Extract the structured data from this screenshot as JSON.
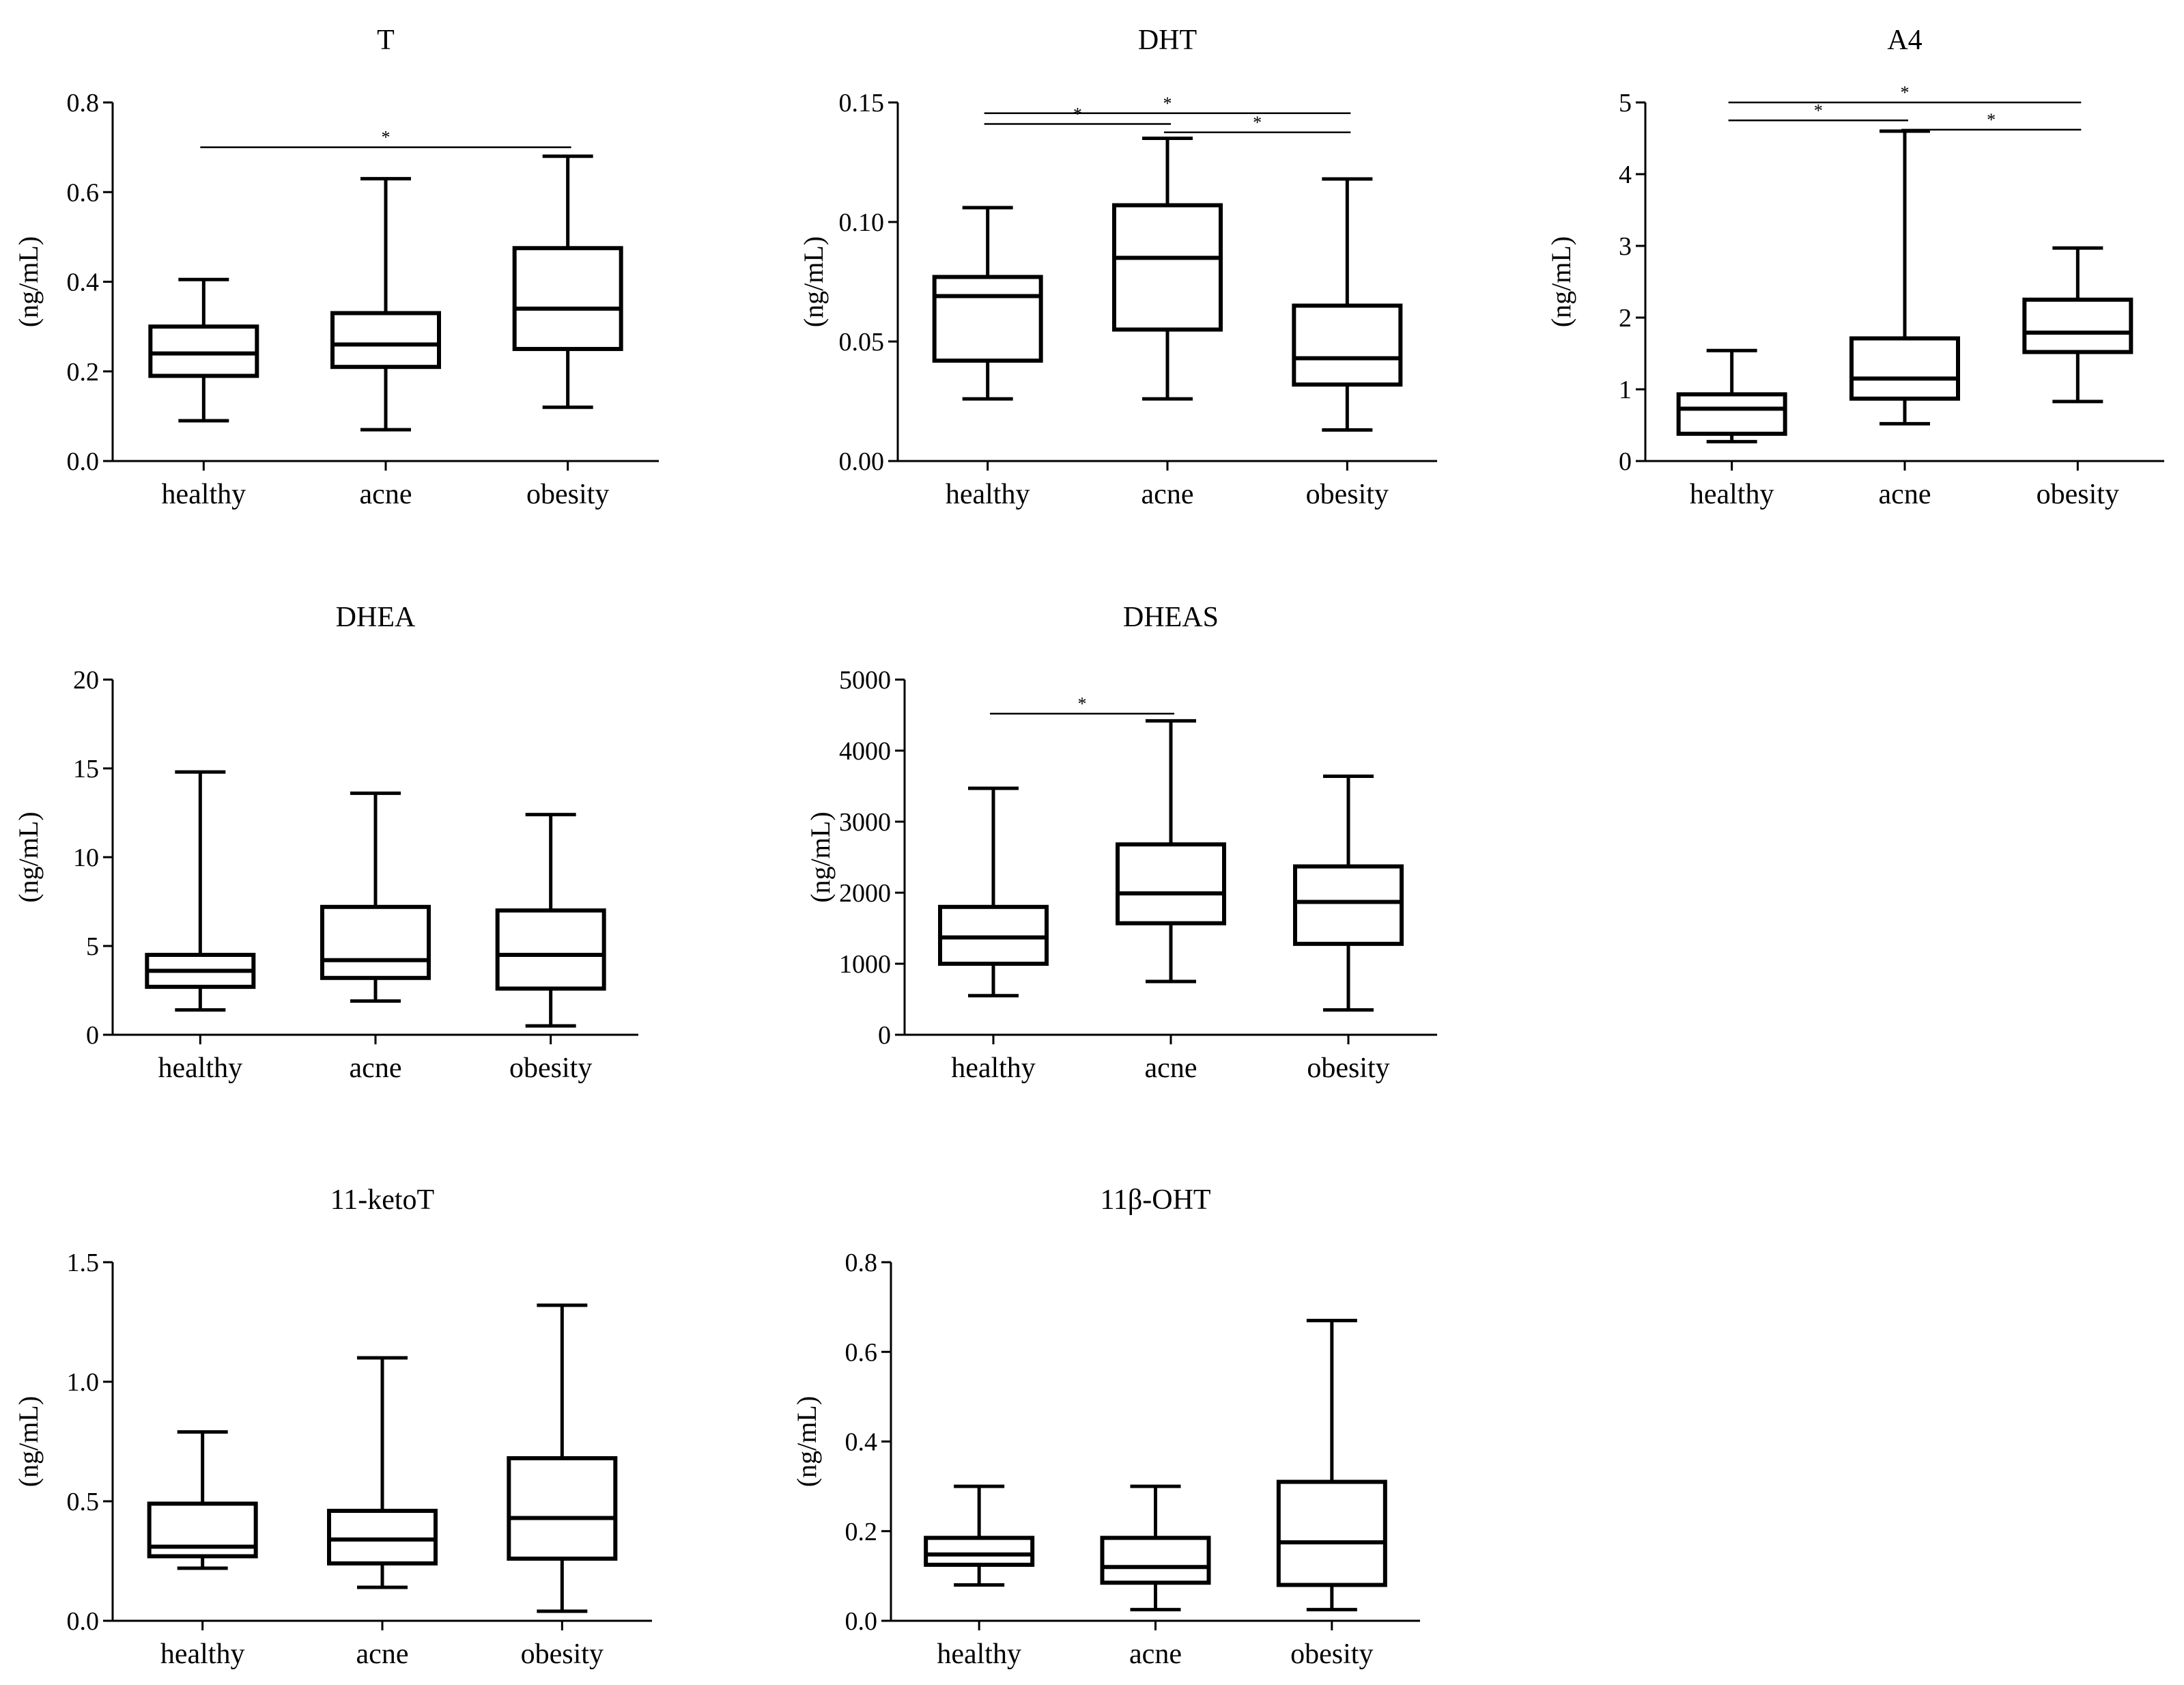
{
  "chart_data": [
    {
      "type": "box",
      "title": "T",
      "ylabel": "(ng/mL)",
      "ylim": [
        0,
        0.8
      ],
      "yticks": [
        "0.0",
        "0.2",
        "0.4",
        "0.6",
        "0.8"
      ],
      "categories": [
        "healthy",
        "acne",
        "obesity"
      ],
      "boxes": [
        {
          "min": 0.09,
          "q1": 0.19,
          "median": 0.24,
          "q3": 0.3,
          "max": 0.405
        },
        {
          "min": 0.07,
          "q1": 0.21,
          "median": 0.26,
          "q3": 0.33,
          "max": 0.63
        },
        {
          "min": 0.12,
          "q1": 0.25,
          "median": 0.34,
          "q3": 0.475,
          "max": 0.68
        }
      ],
      "significance": [
        {
          "from": 0,
          "to": 2,
          "y": 0.7,
          "label": "*"
        }
      ]
    },
    {
      "type": "box",
      "title": "DHT",
      "ylabel": "(ng/mL)",
      "ylim": [
        0,
        0.15
      ],
      "yticks": [
        "0.00",
        "0.05",
        "0.10",
        "0.15"
      ],
      "categories": [
        "healthy",
        "acne",
        "obesity"
      ],
      "boxes": [
        {
          "min": 0.026,
          "q1": 0.042,
          "median": 0.069,
          "q3": 0.077,
          "max": 0.106
        },
        {
          "min": 0.026,
          "q1": 0.055,
          "median": 0.085,
          "q3": 0.107,
          "max": 0.135
        },
        {
          "min": 0.013,
          "q1": 0.032,
          "median": 0.043,
          "q3": 0.065,
          "max": 0.118
        }
      ],
      "significance": [
        {
          "from": 0,
          "to": 2,
          "y": 0.1455,
          "label": "*"
        },
        {
          "from": 0,
          "to": 1,
          "y": 0.141,
          "label": "*"
        },
        {
          "from": 1,
          "to": 2,
          "y": 0.1375,
          "label": "*"
        }
      ]
    },
    {
      "type": "box",
      "title": "A4",
      "ylabel": "(ng/mL)",
      "ylim": [
        0,
        5
      ],
      "yticks": [
        "0",
        "1",
        "2",
        "3",
        "4",
        "5"
      ],
      "categories": [
        "healthy",
        "acne",
        "obesity"
      ],
      "boxes": [
        {
          "min": 0.27,
          "q1": 0.38,
          "median": 0.73,
          "q3": 0.93,
          "max": 1.54
        },
        {
          "min": 0.52,
          "q1": 0.87,
          "median": 1.15,
          "q3": 1.71,
          "max": 4.6
        },
        {
          "min": 0.83,
          "q1": 1.52,
          "median": 1.79,
          "q3": 2.25,
          "max": 2.97
        }
      ],
      "significance": [
        {
          "from": 0,
          "to": 2,
          "y": 5.0,
          "label": "*"
        },
        {
          "from": 0,
          "to": 1,
          "y": 4.75,
          "label": "*"
        },
        {
          "from": 1,
          "to": 2,
          "y": 4.62,
          "label": "*"
        }
      ]
    },
    {
      "type": "box",
      "title": "DHEA",
      "ylabel": "(ng/mL)",
      "ylim": [
        0,
        20
      ],
      "yticks": [
        "0",
        "5",
        "10",
        "15",
        "20"
      ],
      "categories": [
        "healthy",
        "acne",
        "obesity"
      ],
      "boxes": [
        {
          "min": 1.4,
          "q1": 2.7,
          "median": 3.6,
          "q3": 4.5,
          "max": 14.8
        },
        {
          "min": 1.9,
          "q1": 3.2,
          "median": 4.2,
          "q3": 7.2,
          "max": 13.6
        },
        {
          "min": 0.5,
          "q1": 2.6,
          "median": 4.5,
          "q3": 7.0,
          "max": 12.4
        }
      ],
      "significance": []
    },
    {
      "type": "box",
      "title": "DHEAS",
      "ylabel": "(ng/mL)",
      "ylim": [
        0,
        5000
      ],
      "yticks": [
        "0",
        "1000",
        "2000",
        "3000",
        "4000",
        "5000"
      ],
      "categories": [
        "healthy",
        "acne",
        "obesity"
      ],
      "boxes": [
        {
          "min": 550,
          "q1": 1000,
          "median": 1370,
          "q3": 1800,
          "max": 3470
        },
        {
          "min": 750,
          "q1": 1570,
          "median": 1990,
          "q3": 2680,
          "max": 4420
        },
        {
          "min": 350,
          "q1": 1280,
          "median": 1870,
          "q3": 2370,
          "max": 3640
        }
      ],
      "significance": [
        {
          "from": 0,
          "to": 1,
          "y": 4520,
          "label": "*"
        }
      ]
    },
    {
      "type": "box",
      "title": "11-ketoT",
      "ylabel": "(ng/mL)",
      "ylim": [
        0,
        1.5
      ],
      "yticks": [
        "0.0",
        "0.5",
        "1.0",
        "1.5"
      ],
      "categories": [
        "healthy",
        "acne",
        "obesity"
      ],
      "boxes": [
        {
          "min": 0.22,
          "q1": 0.27,
          "median": 0.31,
          "q3": 0.49,
          "max": 0.79
        },
        {
          "min": 0.14,
          "q1": 0.24,
          "median": 0.34,
          "q3": 0.46,
          "max": 1.1
        },
        {
          "min": 0.04,
          "q1": 0.26,
          "median": 0.43,
          "q3": 0.68,
          "max": 1.32
        }
      ],
      "significance": []
    },
    {
      "type": "box",
      "title": "11β-OHT",
      "ylabel": "(ng/mL)",
      "ylim": [
        0,
        0.8
      ],
      "yticks": [
        "0.0",
        "0.2",
        "0.4",
        "0.6",
        "0.8"
      ],
      "categories": [
        "healthy",
        "acne",
        "obesity"
      ],
      "boxes": [
        {
          "min": 0.08,
          "q1": 0.125,
          "median": 0.148,
          "q3": 0.185,
          "max": 0.3
        },
        {
          "min": 0.025,
          "q1": 0.085,
          "median": 0.12,
          "q3": 0.185,
          "max": 0.3
        },
        {
          "min": 0.025,
          "q1": 0.08,
          "median": 0.175,
          "q3": 0.31,
          "max": 0.67
        }
      ],
      "significance": []
    }
  ]
}
